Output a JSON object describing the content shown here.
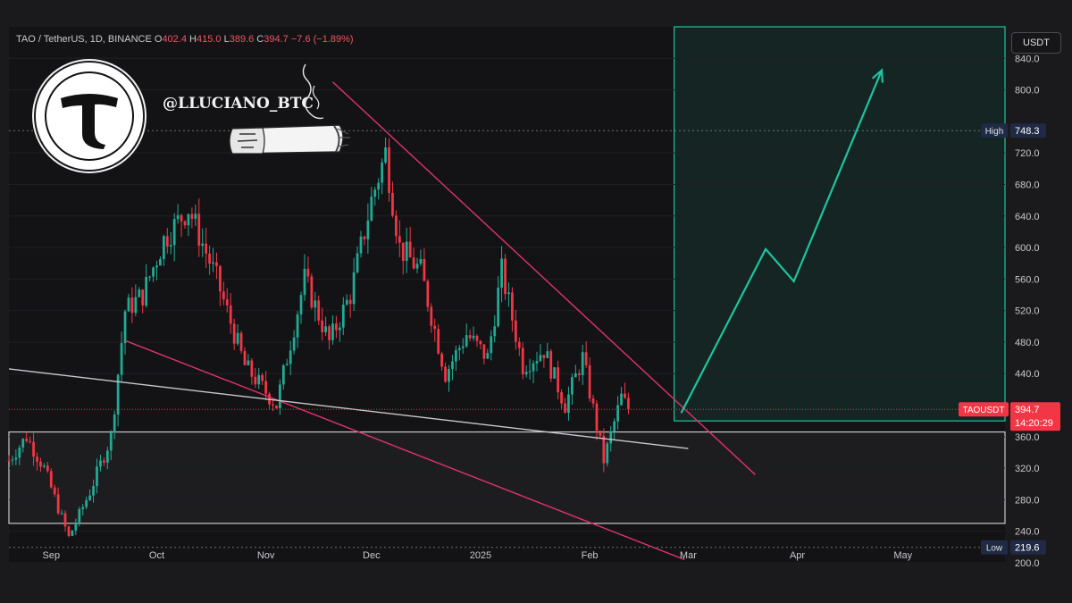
{
  "header": {
    "symbol": "TAO / TetherUS, 1D, BINANCE",
    "o_label": "O",
    "o_value": "402.4",
    "h_label": "H",
    "h_value": "415.0",
    "l_label": "L",
    "l_value": "389.6",
    "c_label": "C",
    "c_value": "394.7",
    "change": "−7.6 (−1.89%)"
  },
  "watermark": {
    "handle": "@LLUCIANO_BTC"
  },
  "price_unit": "USDT",
  "colors": {
    "up": "#22ab94",
    "down": "#f23645",
    "trendline": "#e0336a",
    "projection": "#1fc4a0",
    "support": "#c9c9cc"
  },
  "chart_data": {
    "type": "candlestick",
    "ylim": [
      200,
      880
    ],
    "y_ticks": [
      {
        "value": 840,
        "label": "840.0"
      },
      {
        "value": 800,
        "label": "800.0"
      },
      {
        "value": 720,
        "label": "720.0"
      },
      {
        "value": 680,
        "label": "680.0"
      },
      {
        "value": 640,
        "label": "640.0"
      },
      {
        "value": 600,
        "label": "600.0"
      },
      {
        "value": 560,
        "label": "560.0"
      },
      {
        "value": 520,
        "label": "520.0"
      },
      {
        "value": 480,
        "label": "480.0"
      },
      {
        "value": 440,
        "label": "440.0"
      },
      {
        "value": 360,
        "label": "360.0"
      },
      {
        "value": 320,
        "label": "320.0"
      },
      {
        "value": 280,
        "label": "280.0"
      },
      {
        "value": 240,
        "label": "240.0"
      },
      {
        "value": 200,
        "label": "200.0"
      }
    ],
    "x_range": [
      "2024-08-20",
      "2025-05-30"
    ],
    "x_ticks": [
      {
        "date": "2024-09-01",
        "label": "Sep"
      },
      {
        "date": "2024-10-01",
        "label": "Oct"
      },
      {
        "date": "2024-11-01",
        "label": "Nov"
      },
      {
        "date": "2024-12-01",
        "label": "Dec"
      },
      {
        "date": "2025-01-01",
        "label": "2025"
      },
      {
        "date": "2025-02-01",
        "label": "Feb"
      },
      {
        "date": "2025-03-01",
        "label": "Mar"
      },
      {
        "date": "2025-04-01",
        "label": "Apr"
      },
      {
        "date": "2025-05-01",
        "label": "May"
      }
    ],
    "candle_start": "2024-08-20",
    "candle_end": "2025-02-12",
    "anchors": [
      {
        "date": "2024-08-20",
        "close": 330
      },
      {
        "date": "2024-08-25",
        "close": 360
      },
      {
        "date": "2024-08-30",
        "close": 320
      },
      {
        "date": "2024-09-06",
        "close": 232
      },
      {
        "date": "2024-09-12",
        "close": 290
      },
      {
        "date": "2024-09-18",
        "close": 360
      },
      {
        "date": "2024-09-22",
        "close": 520
      },
      {
        "date": "2024-09-27",
        "close": 540
      },
      {
        "date": "2024-10-03",
        "close": 610
      },
      {
        "date": "2024-10-10",
        "close": 650
      },
      {
        "date": "2024-10-18",
        "close": 560
      },
      {
        "date": "2024-10-26",
        "close": 450
      },
      {
        "date": "2024-11-04",
        "close": 400
      },
      {
        "date": "2024-11-12",
        "close": 560
      },
      {
        "date": "2024-11-19",
        "close": 480
      },
      {
        "date": "2024-11-25",
        "close": 540
      },
      {
        "date": "2024-12-01",
        "close": 660
      },
      {
        "date": "2024-12-05",
        "close": 720
      },
      {
        "date": "2024-12-09",
        "close": 600
      },
      {
        "date": "2024-12-15",
        "close": 570
      },
      {
        "date": "2024-12-22",
        "close": 440
      },
      {
        "date": "2024-12-28",
        "close": 490
      },
      {
        "date": "2025-01-03",
        "close": 460
      },
      {
        "date": "2025-01-07",
        "close": 570
      },
      {
        "date": "2025-01-13",
        "close": 450
      },
      {
        "date": "2025-01-19",
        "close": 470
      },
      {
        "date": "2025-01-25",
        "close": 400
      },
      {
        "date": "2025-01-30",
        "close": 460
      },
      {
        "date": "2025-02-05",
        "close": 330
      },
      {
        "date": "2025-02-10",
        "close": 410
      },
      {
        "date": "2025-02-12",
        "close": 394.7
      }
    ],
    "trendlines": [
      {
        "name": "descending-resistance",
        "from": {
          "date": "2024-11-20",
          "value": 810
        },
        "to": {
          "date": "2025-03-20",
          "value": 312
        }
      },
      {
        "name": "descending-support",
        "from": {
          "date": "2024-09-22",
          "value": 482
        },
        "to": {
          "date": "2025-02-28",
          "value": 204
        }
      },
      {
        "name": "diagonal-support",
        "from": {
          "date": "2024-08-20",
          "value": 446
        },
        "to": {
          "date": "2025-03-01",
          "value": 345
        }
      }
    ],
    "projection_path": [
      {
        "date": "2025-02-27",
        "value": 390
      },
      {
        "date": "2025-03-23",
        "value": 598
      },
      {
        "date": "2025-03-31",
        "value": 557
      },
      {
        "date": "2025-04-25",
        "value": 825
      }
    ],
    "zones": [
      {
        "name": "support-zone",
        "from": "2024-08-20",
        "to": "2025-05-30",
        "top": 366,
        "bottom": 250
      },
      {
        "name": "target-zone",
        "from": "2025-02-25",
        "to": "2025-05-30",
        "top": 880,
        "bottom": 380
      }
    ],
    "levels": [
      {
        "name": "high",
        "label": "High",
        "value": 748.3,
        "value_label": "748.3"
      },
      {
        "name": "low",
        "label": "Low",
        "value": 219.6,
        "value_label": "219.6"
      },
      {
        "name": "current",
        "label": "TAOUSDT",
        "value": 394.7,
        "value_label": "394.7",
        "countdown": "14:20:29"
      }
    ]
  }
}
